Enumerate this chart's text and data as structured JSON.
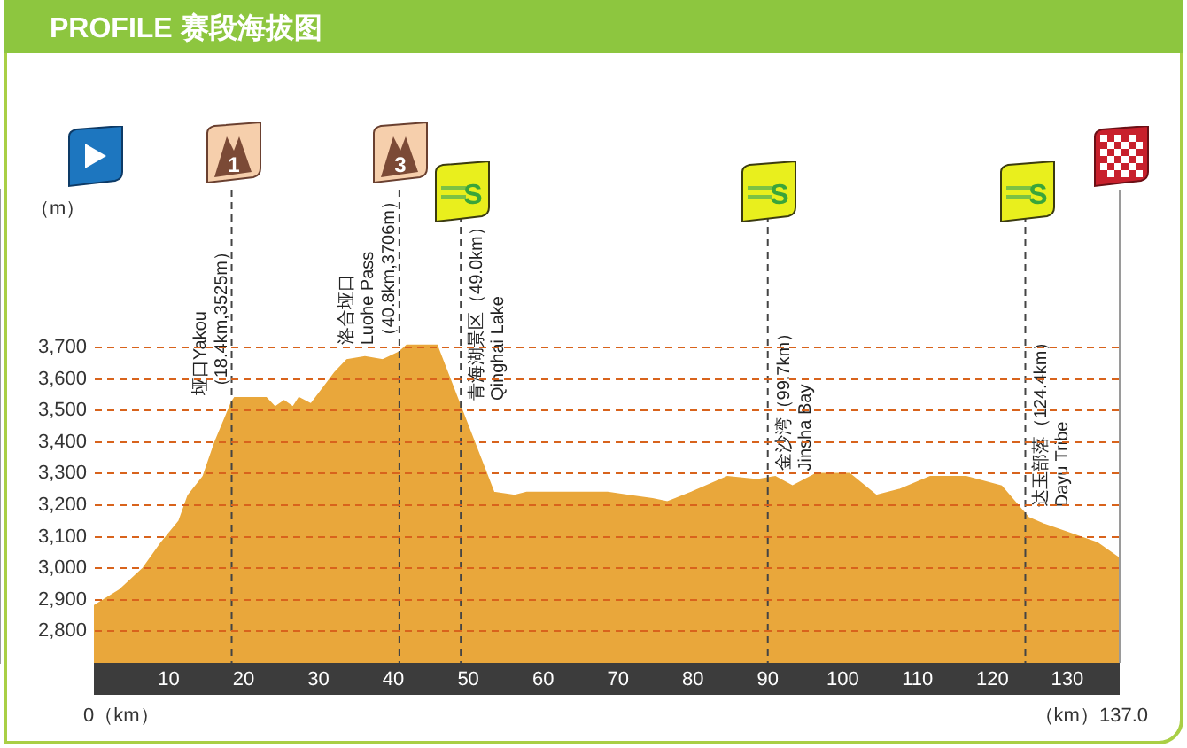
{
  "chart_data": {
    "type": "area",
    "title": "PROFILE 赛段海拔图",
    "ylabel": "（m）",
    "x": [
      0,
      3.4,
      6.6,
      9,
      11.4,
      12.6,
      14.6,
      16.2,
      18.4,
      18.8,
      23,
      24.2,
      25.4,
      26.6,
      27.4,
      29,
      30.6,
      32.2,
      33.8,
      36.2,
      38.6,
      40.8,
      41.8,
      45.8,
      49.8,
      53.4,
      56.2,
      57.8,
      68.6,
      71.4,
      74.6,
      76.6,
      79.8,
      84.6,
      88.6,
      91,
      93.3,
      96.5,
      100.9,
      104.5,
      107.7,
      111.7,
      116.5,
      121.2,
      124.8,
      126.8,
      129.2,
      134,
      137
    ],
    "values": [
      2880,
      2930,
      3000,
      3080,
      3150,
      3230,
      3290,
      3400,
      3525,
      3540,
      3540,
      3510,
      3530,
      3510,
      3540,
      3520,
      3570,
      3620,
      3660,
      3670,
      3660,
      3685,
      3706,
      3706,
      3460,
      3240,
      3230,
      3240,
      3240,
      3230,
      3220,
      3210,
      3240,
      3290,
      3280,
      3290,
      3260,
      3300,
      3300,
      3230,
      3250,
      3290,
      3290,
      3260,
      3160,
      3140,
      3120,
      3080,
      3030
    ],
    "color": "#e9a73b",
    "xlim": [
      0,
      137
    ],
    "xticks": [
      10,
      20,
      30,
      40,
      50,
      60,
      70,
      80,
      90,
      100,
      110,
      120,
      130
    ],
    "ylim": [
      2700,
      4200
    ],
    "yticks": [
      {
        "value": 2800,
        "label": "2,800"
      },
      {
        "value": 2900,
        "label": "2,900"
      },
      {
        "value": 3000,
        "label": "3,000"
      },
      {
        "value": 3100,
        "label": "3,100"
      },
      {
        "value": 3200,
        "label": "3,200"
      },
      {
        "value": 3300,
        "label": "3,300"
      },
      {
        "value": 3400,
        "label": "3,400"
      },
      {
        "value": 3500,
        "label": "3,500"
      },
      {
        "value": 3600,
        "label": "3,600"
      },
      {
        "value": 3700,
        "label": "3,700"
      }
    ],
    "grid": "y",
    "legend": false,
    "ref_lines": [
      {
        "axis": "x",
        "value": 18.4,
        "label": "垭口Yakou\n（18.4km,3525m）",
        "line_style": "dashed",
        "color": "#444444"
      },
      {
        "axis": "x",
        "value": 40.8,
        "label": "洛合垭口\nLuohe Pass\n（40.8km,3706m）",
        "line_style": "dashed",
        "color": "#444444"
      },
      {
        "axis": "x",
        "value": 49.0,
        "label": "青海湖景区（49.0km）\nQinghai Lake",
        "line_style": "dashed",
        "color": "#444444"
      },
      {
        "axis": "x",
        "value": 90,
        "label": "金沙湾（99.7km）\nJinsha Bay",
        "line_style": "dashed",
        "color": "#444444"
      },
      {
        "axis": "x",
        "value": 124.4,
        "label": "达玉部落（124.4km）\nDayu Tribe",
        "line_style": "dashed",
        "color": "#444444"
      },
      {
        "axis": "x",
        "value": 137,
        "line_style": "solid",
        "color": "#9a9a9a"
      }
    ],
    "annotations": [
      "0（km）",
      "（km）137.0",
      "1",
      "3",
      "S",
      "S",
      "S"
    ]
  }
}
